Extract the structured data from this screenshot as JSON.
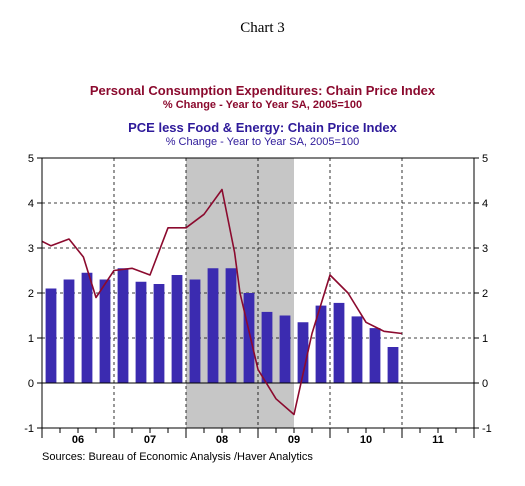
{
  "chart_label": "Chart 3",
  "source": "Sources:  Bureau of Economic Analysis /Haver Analytics",
  "chart_data": {
    "type": "bar",
    "title": "Personal Consumption Expenditures: Chain Price Index",
    "subtitle": "% Change - Year to Year     SA, 2005=100",
    "title2": "PCE less Food & Energy: Chain Price Index",
    "subtitle2": "% Change - Year to Year     SA, 2005=100",
    "ylim": [
      -1,
      5
    ],
    "yticks": [
      -1,
      0,
      1,
      2,
      3,
      4,
      5
    ],
    "xlim_quarters": [
      0,
      24
    ],
    "year_labels": [
      "06",
      "07",
      "08",
      "09",
      "10",
      "11"
    ],
    "recession_shading": [
      8.0,
      14.0
    ],
    "grid": true,
    "series": [
      {
        "type": "bar",
        "color": "#3b2bb0",
        "x": [
          0.5,
          1.5,
          2.5,
          3.5,
          4.5,
          5.5,
          6.5,
          7.5,
          8.5,
          9.5,
          10.5,
          11.5,
          12.5,
          13.5,
          14.5,
          15.5,
          16.5,
          17.5,
          18.5,
          19.5
        ],
        "values": [
          2.1,
          2.3,
          2.45,
          2.3,
          2.55,
          2.25,
          2.2,
          2.4,
          2.3,
          2.55,
          2.55,
          2.0,
          1.58,
          1.5,
          1.35,
          1.72,
          1.78,
          1.48,
          1.22,
          0.8
        ]
      },
      {
        "type": "line",
        "color": "#8b0a2e",
        "x": [
          0.0,
          0.5,
          1.5,
          2.3,
          3.0,
          4.0,
          5.0,
          6.0,
          7.0,
          8.0,
          9.0,
          10.0,
          10.7,
          11.0,
          12.0,
          13.0,
          14.0,
          15.0,
          16.0,
          17.0,
          18.0,
          19.0,
          20.0
        ],
        "values": [
          3.15,
          3.05,
          3.2,
          2.8,
          1.9,
          2.5,
          2.55,
          2.4,
          3.45,
          3.45,
          3.75,
          4.3,
          2.9,
          2.0,
          0.3,
          -0.35,
          -0.7,
          1.1,
          2.4,
          2.0,
          1.35,
          1.15,
          1.1
        ]
      }
    ]
  }
}
